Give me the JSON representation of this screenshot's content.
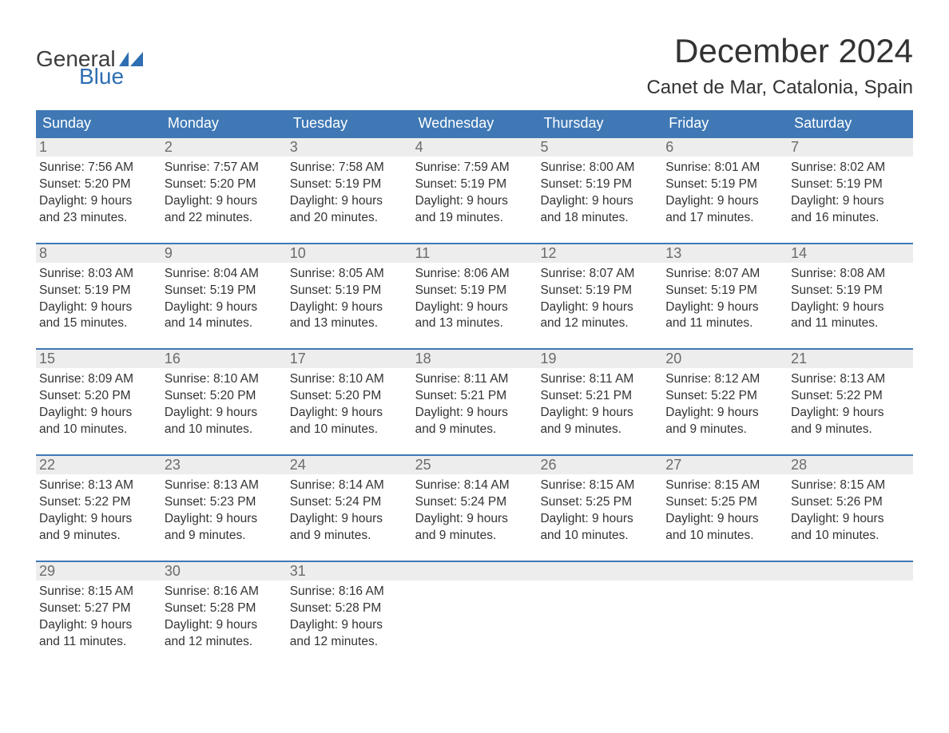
{
  "logo": {
    "text_general": "General",
    "text_blue": "Blue",
    "flag_color": "#2e6fb3"
  },
  "title": "December 2024",
  "location": "Canet de Mar, Catalonia, Spain",
  "colors": {
    "header_bg": "#3f78b5",
    "header_text": "#ffffff",
    "daynum_bg": "#ededed",
    "daynum_text": "#6b6b6b",
    "body_text": "#333333",
    "week_border": "#3f78b5",
    "background": "#ffffff",
    "logo_general": "#3d3d3d",
    "logo_blue": "#2e6fb3"
  },
  "typography": {
    "title_fontsize": 42,
    "location_fontsize": 24,
    "weekday_fontsize": 18,
    "daynum_fontsize": 18,
    "content_fontsize": 15.5,
    "font_family": "Arial"
  },
  "weekdays": [
    "Sunday",
    "Monday",
    "Tuesday",
    "Wednesday",
    "Thursday",
    "Friday",
    "Saturday"
  ],
  "labels": {
    "sunrise": "Sunrise:",
    "sunset": "Sunset:",
    "daylight": "Daylight:"
  },
  "weeks": [
    [
      {
        "num": "1",
        "sunrise": "7:56 AM",
        "sunset": "5:20 PM",
        "daylight1": "9 hours",
        "daylight2": "and 23 minutes."
      },
      {
        "num": "2",
        "sunrise": "7:57 AM",
        "sunset": "5:20 PM",
        "daylight1": "9 hours",
        "daylight2": "and 22 minutes."
      },
      {
        "num": "3",
        "sunrise": "7:58 AM",
        "sunset": "5:19 PM",
        "daylight1": "9 hours",
        "daylight2": "and 20 minutes."
      },
      {
        "num": "4",
        "sunrise": "7:59 AM",
        "sunset": "5:19 PM",
        "daylight1": "9 hours",
        "daylight2": "and 19 minutes."
      },
      {
        "num": "5",
        "sunrise": "8:00 AM",
        "sunset": "5:19 PM",
        "daylight1": "9 hours",
        "daylight2": "and 18 minutes."
      },
      {
        "num": "6",
        "sunrise": "8:01 AM",
        "sunset": "5:19 PM",
        "daylight1": "9 hours",
        "daylight2": "and 17 minutes."
      },
      {
        "num": "7",
        "sunrise": "8:02 AM",
        "sunset": "5:19 PM",
        "daylight1": "9 hours",
        "daylight2": "and 16 minutes."
      }
    ],
    [
      {
        "num": "8",
        "sunrise": "8:03 AM",
        "sunset": "5:19 PM",
        "daylight1": "9 hours",
        "daylight2": "and 15 minutes."
      },
      {
        "num": "9",
        "sunrise": "8:04 AM",
        "sunset": "5:19 PM",
        "daylight1": "9 hours",
        "daylight2": "and 14 minutes."
      },
      {
        "num": "10",
        "sunrise": "8:05 AM",
        "sunset": "5:19 PM",
        "daylight1": "9 hours",
        "daylight2": "and 13 minutes."
      },
      {
        "num": "11",
        "sunrise": "8:06 AM",
        "sunset": "5:19 PM",
        "daylight1": "9 hours",
        "daylight2": "and 13 minutes."
      },
      {
        "num": "12",
        "sunrise": "8:07 AM",
        "sunset": "5:19 PM",
        "daylight1": "9 hours",
        "daylight2": "and 12 minutes."
      },
      {
        "num": "13",
        "sunrise": "8:07 AM",
        "sunset": "5:19 PM",
        "daylight1": "9 hours",
        "daylight2": "and 11 minutes."
      },
      {
        "num": "14",
        "sunrise": "8:08 AM",
        "sunset": "5:19 PM",
        "daylight1": "9 hours",
        "daylight2": "and 11 minutes."
      }
    ],
    [
      {
        "num": "15",
        "sunrise": "8:09 AM",
        "sunset": "5:20 PM",
        "daylight1": "9 hours",
        "daylight2": "and 10 minutes."
      },
      {
        "num": "16",
        "sunrise": "8:10 AM",
        "sunset": "5:20 PM",
        "daylight1": "9 hours",
        "daylight2": "and 10 minutes."
      },
      {
        "num": "17",
        "sunrise": "8:10 AM",
        "sunset": "5:20 PM",
        "daylight1": "9 hours",
        "daylight2": "and 10 minutes."
      },
      {
        "num": "18",
        "sunrise": "8:11 AM",
        "sunset": "5:21 PM",
        "daylight1": "9 hours",
        "daylight2": "and 9 minutes."
      },
      {
        "num": "19",
        "sunrise": "8:11 AM",
        "sunset": "5:21 PM",
        "daylight1": "9 hours",
        "daylight2": "and 9 minutes."
      },
      {
        "num": "20",
        "sunrise": "8:12 AM",
        "sunset": "5:22 PM",
        "daylight1": "9 hours",
        "daylight2": "and 9 minutes."
      },
      {
        "num": "21",
        "sunrise": "8:13 AM",
        "sunset": "5:22 PM",
        "daylight1": "9 hours",
        "daylight2": "and 9 minutes."
      }
    ],
    [
      {
        "num": "22",
        "sunrise": "8:13 AM",
        "sunset": "5:22 PM",
        "daylight1": "9 hours",
        "daylight2": "and 9 minutes."
      },
      {
        "num": "23",
        "sunrise": "8:13 AM",
        "sunset": "5:23 PM",
        "daylight1": "9 hours",
        "daylight2": "and 9 minutes."
      },
      {
        "num": "24",
        "sunrise": "8:14 AM",
        "sunset": "5:24 PM",
        "daylight1": "9 hours",
        "daylight2": "and 9 minutes."
      },
      {
        "num": "25",
        "sunrise": "8:14 AM",
        "sunset": "5:24 PM",
        "daylight1": "9 hours",
        "daylight2": "and 9 minutes."
      },
      {
        "num": "26",
        "sunrise": "8:15 AM",
        "sunset": "5:25 PM",
        "daylight1": "9 hours",
        "daylight2": "and 10 minutes."
      },
      {
        "num": "27",
        "sunrise": "8:15 AM",
        "sunset": "5:25 PM",
        "daylight1": "9 hours",
        "daylight2": "and 10 minutes."
      },
      {
        "num": "28",
        "sunrise": "8:15 AM",
        "sunset": "5:26 PM",
        "daylight1": "9 hours",
        "daylight2": "and 10 minutes."
      }
    ],
    [
      {
        "num": "29",
        "sunrise": "8:15 AM",
        "sunset": "5:27 PM",
        "daylight1": "9 hours",
        "daylight2": "and 11 minutes."
      },
      {
        "num": "30",
        "sunrise": "8:16 AM",
        "sunset": "5:28 PM",
        "daylight1": "9 hours",
        "daylight2": "and 12 minutes."
      },
      {
        "num": "31",
        "sunrise": "8:16 AM",
        "sunset": "5:28 PM",
        "daylight1": "9 hours",
        "daylight2": "and 12 minutes."
      },
      {
        "empty": true
      },
      {
        "empty": true
      },
      {
        "empty": true
      },
      {
        "empty": true
      }
    ]
  ]
}
